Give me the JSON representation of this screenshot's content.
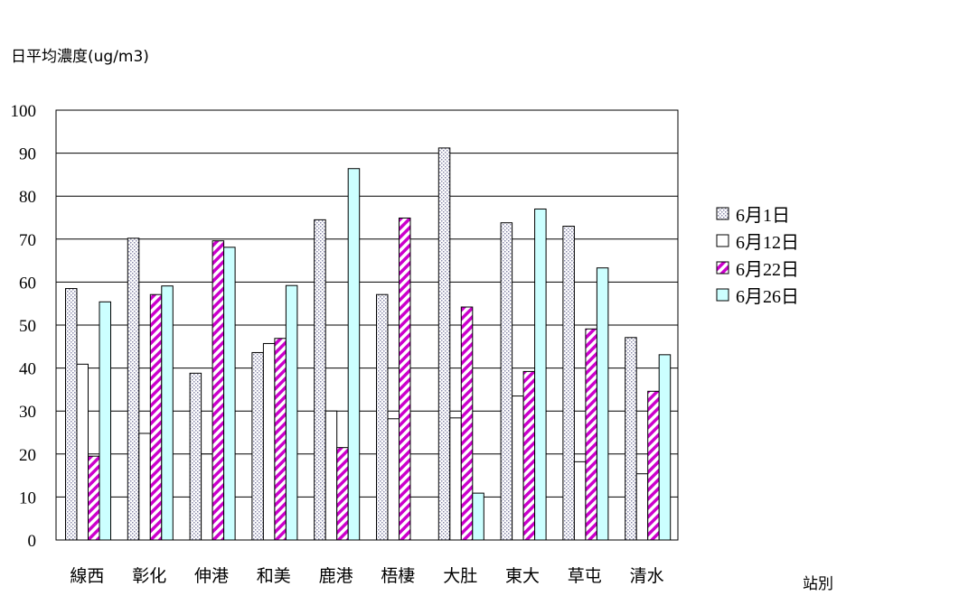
{
  "chart_data": {
    "type": "bar",
    "ylabel": "日平均濃度(ug/m3)",
    "xlabel": "站別",
    "ylim": [
      0,
      100
    ],
    "yticks": [
      0,
      10,
      20,
      30,
      40,
      50,
      60,
      70,
      80,
      90,
      100
    ],
    "grid": true,
    "legend_position": "right",
    "categories": [
      "線西",
      "彰化",
      "伸港",
      "和美",
      "鹿港",
      "梧棲",
      "大肚",
      "東大",
      "草屯",
      "清水"
    ],
    "series": [
      {
        "name": "6月1日",
        "pattern": "dots",
        "color": "#c8c8e0",
        "values": [
          58.5,
          70.2,
          38.8,
          43.6,
          74.5,
          57.1,
          91.2,
          73.8,
          73.0,
          47.1
        ]
      },
      {
        "name": "6月12日",
        "pattern": "solid",
        "color": "#ffffff",
        "values": [
          40.9,
          24.8,
          20.0,
          45.7,
          30.0,
          28.2,
          28.4,
          33.5,
          18.2,
          15.4
        ]
      },
      {
        "name": "6月22日",
        "pattern": "stripes",
        "color": "#cc00cc",
        "values": [
          19.5,
          57.1,
          69.6,
          46.9,
          21.5,
          74.9,
          54.2,
          39.2,
          49.1,
          34.6
        ]
      },
      {
        "name": "6月26日",
        "pattern": "solid",
        "color": "#ccffff",
        "values": [
          55.4,
          59.1,
          68.1,
          59.2,
          86.4,
          null,
          10.9,
          77.0,
          63.3,
          43.1
        ]
      }
    ]
  }
}
